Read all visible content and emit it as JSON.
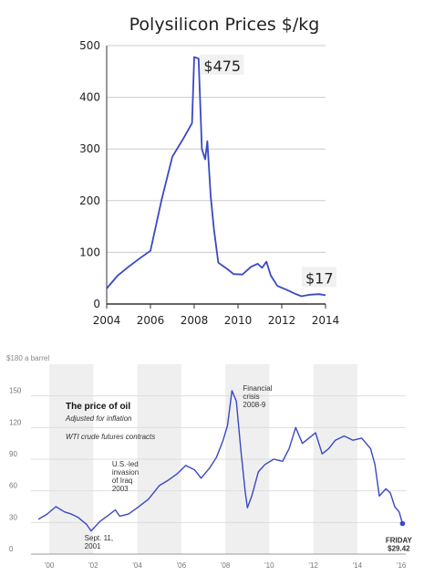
{
  "colors": {
    "line": "#3a48c4",
    "grid": "#cccccc",
    "axis": "#333333",
    "band": "#efefef"
  },
  "chart_data": [
    {
      "type": "line",
      "title": "Polysilicon Prices $/kg",
      "xlabel": "",
      "ylabel": "",
      "xlim": [
        2004,
        2014
      ],
      "ylim": [
        0,
        500
      ],
      "x_ticks": [
        "2004",
        "2006",
        "2008",
        "2010",
        "2012",
        "2014"
      ],
      "y_ticks": [
        "0",
        "100",
        "200",
        "300",
        "400",
        "500"
      ],
      "grid": true,
      "series": [
        {
          "x": [
            2004,
            2004.5,
            2005,
            2005.5,
            2006,
            2006.5,
            2007,
            2007.5,
            2007.9,
            2008.0,
            2008.2,
            2008.35,
            2008.5,
            2008.6,
            2008.75,
            2008.9,
            2009.1,
            2009.5,
            2009.8,
            2010.2,
            2010.6,
            2010.9,
            2011.1,
            2011.3,
            2011.5,
            2011.8,
            2012.2,
            2012.6,
            2012.9,
            2013.3,
            2013.7,
            2014
          ],
          "y": [
            30,
            55,
            72,
            88,
            103,
            200,
            285,
            320,
            350,
            478,
            475,
            300,
            280,
            315,
            210,
            145,
            80,
            68,
            58,
            57,
            72,
            78,
            70,
            82,
            55,
            35,
            28,
            20,
            15,
            18,
            19,
            17
          ]
        }
      ],
      "annotations": [
        {
          "text": "$475",
          "x": 2008.35,
          "y": 458
        },
        {
          "text": "$17",
          "x": 2013.0,
          "y": 47
        }
      ]
    },
    {
      "type": "line",
      "title": "The price of oil",
      "subtitle": "Adjusted for inflation",
      "note": "WTI crude futures contracts",
      "unit_label": "$180 a barrel",
      "xlim": [
        1999.5,
        2016.2
      ],
      "ylim": [
        0,
        180
      ],
      "x_ticks": [
        "'00",
        "'02",
        "'04",
        "'06",
        "'08",
        "'10",
        "'12",
        "'14",
        "'16"
      ],
      "x_tick_values": [
        2000,
        2002,
        2004,
        2006,
        2008,
        2010,
        2012,
        2014,
        2016
      ],
      "y_ticks": [
        "0",
        "30",
        "60",
        "90",
        "120",
        "150"
      ],
      "y_tick_values": [
        0,
        30,
        60,
        90,
        120,
        150
      ],
      "shaded_years": [
        2000,
        2004,
        2008,
        2012
      ],
      "grid": true,
      "series": [
        {
          "x": [
            1999.5,
            1999.9,
            2000.3,
            2000.7,
            2001.0,
            2001.3,
            2001.7,
            2001.9,
            2002.3,
            2002.7,
            2003.0,
            2003.2,
            2003.6,
            2004.0,
            2004.5,
            2005.0,
            2005.4,
            2005.8,
            2006.2,
            2006.6,
            2006.9,
            2007.3,
            2007.6,
            2007.9,
            2008.1,
            2008.3,
            2008.5,
            2008.7,
            2008.9,
            2009.0,
            2009.2,
            2009.5,
            2009.8,
            2010.2,
            2010.6,
            2010.9,
            2011.2,
            2011.5,
            2011.8,
            2012.1,
            2012.4,
            2012.7,
            2013.0,
            2013.4,
            2013.8,
            2014.2,
            2014.6,
            2014.8,
            2015.0,
            2015.3,
            2015.5,
            2015.7,
            2015.9,
            2016.05
          ],
          "y": [
            33,
            38,
            45,
            40,
            38,
            35,
            28,
            22,
            31,
            37,
            42,
            36,
            38,
            44,
            52,
            65,
            70,
            76,
            84,
            80,
            72,
            82,
            92,
            108,
            122,
            155,
            145,
            100,
            60,
            44,
            55,
            78,
            85,
            90,
            88,
            100,
            120,
            105,
            110,
            115,
            95,
            100,
            108,
            112,
            108,
            110,
            100,
            85,
            55,
            62,
            58,
            45,
            40,
            29
          ]
        }
      ],
      "annotations": [
        {
          "text": [
            "Financial",
            "crisis",
            "2008-9"
          ],
          "x": 2008.8,
          "y": 155
        },
        {
          "text": [
            "U.S.-led",
            "invasion",
            "of Iraq",
            "2003"
          ],
          "x": 2002.85,
          "y": 83
        },
        {
          "text": [
            "Sept. 11,",
            "2001"
          ],
          "x": 2001.6,
          "y": 13
        },
        {
          "text": [
            "FRIDAY",
            "$29.42"
          ],
          "x": 2016.05,
          "y": 11
        }
      ]
    }
  ]
}
